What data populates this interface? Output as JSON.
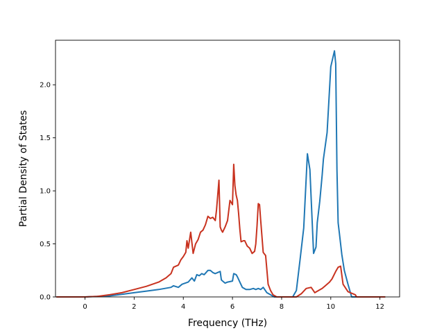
{
  "chart_data": {
    "type": "line",
    "title": "",
    "xlabel": "Frequency (THz)",
    "ylabel": "Partial Density of States",
    "xlim": [
      -1.2,
      12.8
    ],
    "ylim": [
      0.0,
      2.42
    ],
    "xticks": [
      0,
      2,
      4,
      6,
      8,
      10,
      12
    ],
    "xtick_labels": [
      "0",
      "2",
      "4",
      "6",
      "8",
      "10",
      "12"
    ],
    "yticks": [
      0.0,
      0.5,
      1.0,
      1.5,
      2.0
    ],
    "ytick_labels": [
      "0.0",
      "0.5",
      "1.0",
      "1.5",
      "2.0"
    ],
    "grid": false,
    "legend": "none",
    "series": [
      {
        "color": "#1f77b4",
        "x": [
          -1.15,
          -0.5,
          0.0,
          0.5,
          1.0,
          1.5,
          2.0,
          2.5,
          3.0,
          3.5,
          3.6,
          3.8,
          3.95,
          4.2,
          4.35,
          4.45,
          4.55,
          4.65,
          4.75,
          4.85,
          5.0,
          5.1,
          5.2,
          5.3,
          5.4,
          5.5,
          5.55,
          5.6,
          5.7,
          5.8,
          6.0,
          6.05,
          6.15,
          6.2,
          6.3,
          6.4,
          6.55,
          6.7,
          6.85,
          6.95,
          7.05,
          7.15,
          7.25,
          7.4,
          7.55,
          7.7,
          7.9,
          8.2,
          8.45,
          8.6,
          8.75,
          8.9,
          9.05,
          9.15,
          9.3,
          9.4,
          9.45,
          9.5,
          9.55,
          9.65,
          9.7,
          9.85,
          10.0,
          10.15,
          10.2,
          10.25,
          10.3,
          10.35,
          10.45,
          10.55,
          10.7,
          10.85,
          11.0,
          11.1,
          11.2,
          12.2
        ],
        "y": [
          0.0,
          0.0,
          0.0,
          0.005,
          0.01,
          0.025,
          0.04,
          0.055,
          0.07,
          0.09,
          0.105,
          0.09,
          0.12,
          0.14,
          0.18,
          0.15,
          0.21,
          0.2,
          0.22,
          0.21,
          0.25,
          0.25,
          0.23,
          0.22,
          0.23,
          0.24,
          0.16,
          0.15,
          0.13,
          0.14,
          0.15,
          0.22,
          0.21,
          0.19,
          0.14,
          0.09,
          0.07,
          0.07,
          0.08,
          0.07,
          0.08,
          0.07,
          0.09,
          0.04,
          0.02,
          0.0,
          0.0,
          0.0,
          0.0,
          0.06,
          0.35,
          0.65,
          1.35,
          1.2,
          0.41,
          0.47,
          0.7,
          0.8,
          0.9,
          1.15,
          1.3,
          1.55,
          2.17,
          2.32,
          2.2,
          1.2,
          0.7,
          0.6,
          0.4,
          0.25,
          0.12,
          0.0,
          0.0,
          0.0,
          0.0,
          0.0
        ]
      },
      {
        "color": "#c8321f",
        "x": [
          -1.15,
          -0.5,
          0.0,
          0.5,
          1.0,
          1.5,
          2.0,
          2.5,
          3.0,
          3.3,
          3.5,
          3.6,
          3.8,
          3.9,
          4.0,
          4.1,
          4.15,
          4.2,
          4.3,
          4.4,
          4.5,
          4.6,
          4.7,
          4.8,
          4.9,
          5.0,
          5.1,
          5.2,
          5.3,
          5.35,
          5.45,
          5.5,
          5.55,
          5.6,
          5.7,
          5.8,
          5.9,
          6.0,
          6.05,
          6.1,
          6.15,
          6.2,
          6.25,
          6.3,
          6.35,
          6.45,
          6.5,
          6.6,
          6.7,
          6.8,
          6.9,
          6.95,
          7.0,
          7.05,
          7.1,
          7.15,
          7.25,
          7.35,
          7.45,
          7.55,
          7.65,
          7.8,
          7.9,
          8.3,
          8.6,
          8.8,
          9.0,
          9.2,
          9.35,
          9.5,
          9.65,
          9.8,
          9.95,
          10.05,
          10.2,
          10.3,
          10.4,
          10.5,
          10.7,
          11.0,
          11.05,
          12.2
        ],
        "y": [
          0.0,
          0.0,
          0.0,
          0.005,
          0.02,
          0.04,
          0.07,
          0.1,
          0.14,
          0.18,
          0.22,
          0.28,
          0.3,
          0.35,
          0.38,
          0.42,
          0.53,
          0.46,
          0.61,
          0.41,
          0.5,
          0.54,
          0.61,
          0.63,
          0.68,
          0.76,
          0.74,
          0.75,
          0.72,
          0.82,
          1.1,
          0.66,
          0.63,
          0.61,
          0.66,
          0.72,
          0.91,
          0.87,
          1.25,
          1.05,
          0.96,
          0.91,
          0.79,
          0.64,
          0.52,
          0.53,
          0.53,
          0.48,
          0.46,
          0.41,
          0.43,
          0.5,
          0.67,
          0.88,
          0.87,
          0.72,
          0.42,
          0.39,
          0.12,
          0.06,
          0.02,
          0.0,
          0.0,
          0.0,
          0.0,
          0.03,
          0.08,
          0.09,
          0.04,
          0.06,
          0.08,
          0.11,
          0.14,
          0.17,
          0.24,
          0.28,
          0.29,
          0.12,
          0.05,
          0.02,
          0.0,
          0.0
        ]
      }
    ]
  }
}
